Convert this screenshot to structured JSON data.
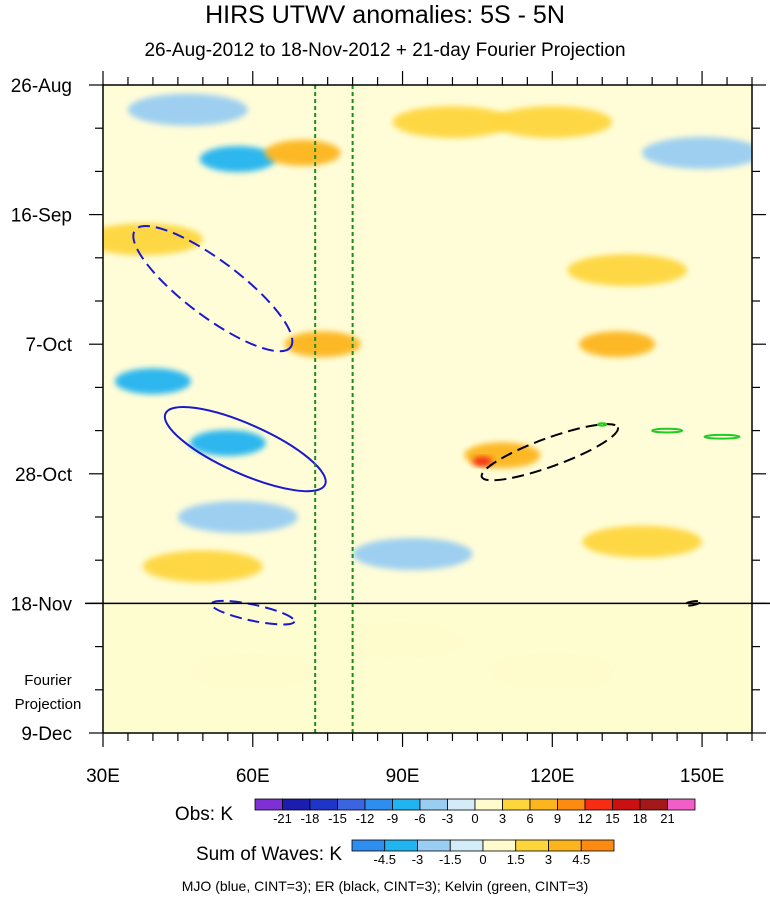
{
  "chart_data": {
    "type": "heatmap",
    "title": "HIRS UTWV anomalies: 5S - 5N",
    "subtitle": "26-Aug-2012 to 18-Nov-2012 + 21-day Fourier Projection",
    "x_range": [
      30,
      160
    ],
    "x_ticks": [
      {
        "value": 30,
        "label": "30E"
      },
      {
        "value": 60,
        "label": "60E"
      },
      {
        "value": 90,
        "label": "90E"
      },
      {
        "value": 120,
        "label": "120E"
      },
      {
        "value": 150,
        "label": "150E"
      }
    ],
    "y_range_days": [
      0,
      105
    ],
    "y_ticks": [
      {
        "day": 0,
        "label": "26-Aug"
      },
      {
        "day": 21,
        "label": "16-Sep"
      },
      {
        "day": 42,
        "label": "7-Oct"
      },
      {
        "day": 63,
        "label": "28-Oct"
      },
      {
        "day": 84,
        "label": "18-Nov"
      },
      {
        "day": 105,
        "label": "9-Dec"
      }
    ],
    "projection_label_1": "Fourier",
    "projection_label_2": "Projection",
    "projection_start_day": 84,
    "reference_lines_lon": [
      72.5,
      80
    ],
    "fields_description": "Longitude-time anomaly field; values read from colour shading",
    "anomaly_regions": [
      {
        "lon": 57,
        "day": 12,
        "value": -6
      },
      {
        "lon": 47,
        "day": 4,
        "value": -3
      },
      {
        "lon": 70,
        "day": 11,
        "value": 6
      },
      {
        "lon": 38,
        "day": 25,
        "value": 3
      },
      {
        "lon": 74,
        "day": 42,
        "value": 6
      },
      {
        "lon": 40,
        "day": 48,
        "value": -6
      },
      {
        "lon": 55,
        "day": 58,
        "value": -6
      },
      {
        "lon": 57,
        "day": 70,
        "value": -3
      },
      {
        "lon": 110,
        "day": 60,
        "value": 6
      },
      {
        "lon": 106,
        "day": 61,
        "value": 12
      },
      {
        "lon": 133,
        "day": 42,
        "value": 6
      },
      {
        "lon": 135,
        "day": 30,
        "value": 3
      },
      {
        "lon": 92,
        "day": 76,
        "value": -3
      },
      {
        "lon": 50,
        "day": 78,
        "value": 3
      },
      {
        "lon": 138,
        "day": 74,
        "value": 3
      },
      {
        "lon": 100,
        "day": 6,
        "value": 3
      },
      {
        "lon": 120,
        "day": 6,
        "value": 3
      },
      {
        "lon": 150,
        "day": 11,
        "value": -3
      },
      {
        "lon": 60,
        "day": 95,
        "value": 1.5
      },
      {
        "lon": 120,
        "day": 95,
        "value": 0
      },
      {
        "lon": 90,
        "day": 90,
        "value": 1.5
      }
    ],
    "wave_contours": [
      {
        "wave": "MJO",
        "color": "#1a1acc",
        "style": "dashed",
        "center_lon": 52,
        "center_day": 33,
        "semi_lon": 19.5,
        "semi_day": 4.5,
        "angle_deg": 37
      },
      {
        "wave": "MJO",
        "color": "#1a1acc",
        "style": "solid",
        "center_lon": 58.5,
        "center_day": 59,
        "semi_lon": 17.5,
        "semi_day": 4.0,
        "angle_deg": 24
      },
      {
        "wave": "MJO",
        "color": "#1a1acc",
        "style": "dashed",
        "center_lon": 60,
        "center_day": 85.5,
        "semi_lon": 8.5,
        "semi_day": 1.3,
        "angle_deg": 12
      },
      {
        "wave": "ER",
        "color": "#000000",
        "style": "dashed",
        "center_lon": 119.5,
        "center_day": 59.5,
        "semi_lon": 14.5,
        "semi_day": 2.3,
        "angle_deg": -20
      },
      {
        "wave": "ER",
        "color": "#000000",
        "style": "dashed",
        "center_lon": 148,
        "center_day": 84,
        "semi_lon": 1.5,
        "semi_day": 0.3,
        "angle_deg": -10
      },
      {
        "wave": "Kelvin",
        "color": "#22cc22",
        "style": "solid",
        "center_lon": 143,
        "center_day": 56,
        "semi_lon": 3,
        "semi_day": 0.3,
        "angle_deg": 0
      },
      {
        "wave": "Kelvin",
        "color": "#22cc22",
        "style": "solid",
        "center_lon": 154,
        "center_day": 57,
        "semi_lon": 3.5,
        "semi_day": 0.3,
        "angle_deg": 0
      },
      {
        "wave": "Kelvin",
        "color": "#22cc22",
        "style": "solid",
        "center_lon": 130,
        "center_day": 55,
        "semi_lon": 0.8,
        "semi_day": 0.2,
        "angle_deg": 0
      }
    ],
    "obs_colorbar": {
      "title": "Obs: K",
      "labels": [
        "-21",
        "-18",
        "-15",
        "-12",
        "-9",
        "-6",
        "-3",
        "0",
        "3",
        "6",
        "9",
        "12",
        "15",
        "18",
        "21"
      ],
      "colors": [
        "#7e30d6",
        "#1c1cae",
        "#1f35c8",
        "#3b64e0",
        "#2e8ef0",
        "#20b4f0",
        "#99cdf2",
        "#d3ecf8",
        "#fffbcc",
        "#fed63c",
        "#fdb51d",
        "#fd8b10",
        "#f62c13",
        "#ca1010",
        "#a31818",
        "#f25ec7"
      ]
    },
    "waves_colorbar": {
      "title": "Sum of Waves: K",
      "labels": [
        "-4.5",
        "-3",
        "-1.5",
        "0",
        "1.5",
        "3",
        "4.5"
      ],
      "colors": [
        "#2e8ef0",
        "#20b4f0",
        "#99cdf2",
        "#d3ecf8",
        "#fffbcc",
        "#fed63c",
        "#fdb51d",
        "#fd8b10"
      ]
    },
    "caption": "MJO (blue, CINT=3); ER (black, CINT=3); Kelvin (green, CINT=3)"
  }
}
